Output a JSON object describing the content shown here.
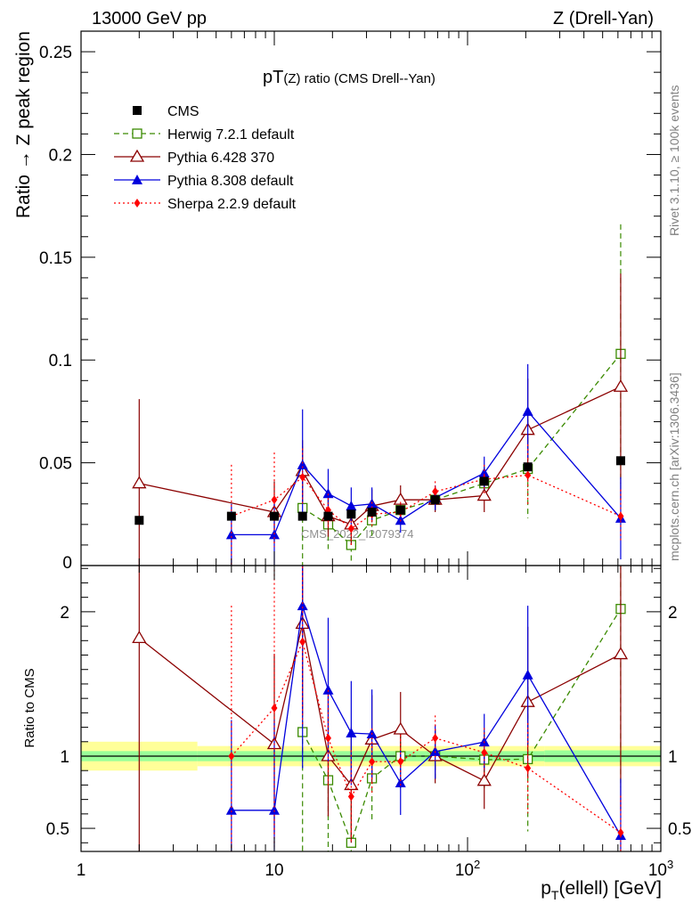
{
  "header": {
    "left": "13000 GeV pp",
    "right": "Z (Drell-Yan)"
  },
  "side_texts": {
    "rivet": "Rivet 3.1.10, ≥ 100k events",
    "mcplots": "mcplots.cern.ch [arXiv:1306.3436]"
  },
  "chart_data": {
    "type": "scatter",
    "title": "pT(Z) ratio (CMS Drell--Yan)",
    "title_main": "pT",
    "title_sub": "(Z) ratio (CMS Drell--Yan)",
    "watermark": "CMS_2022_I2079374",
    "xlabel_p": "p",
    "xlabel_T": "T",
    "xlabel_rest": "(ellell) [GeV]",
    "x_scale": "log",
    "xlim": [
      1,
      1000
    ],
    "x_ticks": [
      {
        "value": 1,
        "label": "1"
      },
      {
        "value": 10,
        "label": "10"
      },
      {
        "value": 100,
        "label": "10",
        "sup": "2"
      },
      {
        "value": 1000,
        "label": "10",
        "sup": "3"
      }
    ],
    "top_panel": {
      "ylabel": "Ratio → Z peak region",
      "ylim": [
        0,
        0.26
      ],
      "y_ticks": [
        {
          "value": 0,
          "label": "0"
        },
        {
          "value": 0.05,
          "label": "0.05"
        },
        {
          "value": 0.1,
          "label": "0.1"
        },
        {
          "value": 0.15,
          "label": "0.15"
        },
        {
          "value": 0.2,
          "label": "0.2"
        },
        {
          "value": 0.25,
          "label": "0.25"
        }
      ]
    },
    "bottom_panel": {
      "ylabel": "Ratio to CMS",
      "ylim": [
        0.34,
        2.32
      ],
      "y_ticks": [
        {
          "value": 0.5,
          "label": "0.5"
        },
        {
          "value": 1,
          "label": "1"
        },
        {
          "value": 2,
          "label": "2"
        }
      ]
    },
    "x": [
      2,
      6,
      10,
      14,
      19,
      25,
      32,
      45,
      68,
      122,
      205,
      620
    ],
    "data": {
      "name": "CMS",
      "color": "#000000",
      "values": [
        0.022,
        0.024,
        0.024,
        0.024,
        0.024,
        0.025,
        0.026,
        0.027,
        0.032,
        0.041,
        0.048,
        0.051
      ],
      "errors": [
        0,
        0,
        0,
        0,
        0,
        0,
        0,
        0,
        0,
        0,
        0,
        0
      ]
    },
    "bands": {
      "inner_color": "#99ff99",
      "outer_color": "#ffff99",
      "bins": [
        {
          "x0": 1,
          "x1": 4,
          "inner": 0.035,
          "outer": 0.1
        },
        {
          "x0": 4,
          "x1": 250,
          "inner": 0.035,
          "outer": 0.07
        },
        {
          "x0": 250,
          "x1": 1000,
          "inner": 0.04,
          "outer": 0.07
        }
      ]
    },
    "series": [
      {
        "name": "Herwig 7.2.1 default",
        "color": "#3a8a00",
        "marker": "open-square",
        "dash": "6,4",
        "values": [
          null,
          null,
          null,
          0.028,
          0.02,
          0.01,
          0.022,
          0.027,
          0.032,
          0.04,
          0.047,
          0.103
        ],
        "errors": [
          null,
          null,
          null,
          0.03,
          0.012,
          0.008,
          0.008,
          0.006,
          0.006,
          0.008,
          0.024,
          0.063
        ]
      },
      {
        "name": "Pythia 6.428 370",
        "color": "#8b0000",
        "marker": "open-triangle",
        "dash": "",
        "values": [
          0.04,
          null,
          0.026,
          0.046,
          0.024,
          0.02,
          0.029,
          0.032,
          0.032,
          0.034,
          0.066,
          0.087
        ],
        "errors": [
          0.041,
          null,
          0.015,
          0.015,
          0.01,
          0.01,
          0.008,
          0.007,
          0.006,
          0.008,
          0.025,
          0.055
        ]
      },
      {
        "name": "Pythia 8.308 default",
        "color": "#0000dd",
        "marker": "filled-triangle",
        "dash": "",
        "values": [
          null,
          0.015,
          0.015,
          0.049,
          0.035,
          0.029,
          0.03,
          0.022,
          0.033,
          0.045,
          0.075,
          0.023
        ],
        "errors": [
          null,
          0.015,
          0.015,
          0.027,
          0.012,
          0.009,
          0.008,
          0.006,
          0.006,
          0.008,
          0.023,
          0.02
        ]
      },
      {
        "name": "Sherpa 2.2.9 default",
        "color": "#ff0000",
        "marker": "filled-diamond",
        "dash": "2,3",
        "values": [
          null,
          0.024,
          0.032,
          0.043,
          0.027,
          0.018,
          0.025,
          0.026,
          0.036,
          0.042,
          0.044,
          0.024
        ],
        "errors": [
          null,
          0.025,
          0.023,
          0.014,
          0.008,
          0.008,
          0.006,
          0.005,
          0.005,
          0.007,
          0.015,
          0.013
        ]
      }
    ]
  }
}
